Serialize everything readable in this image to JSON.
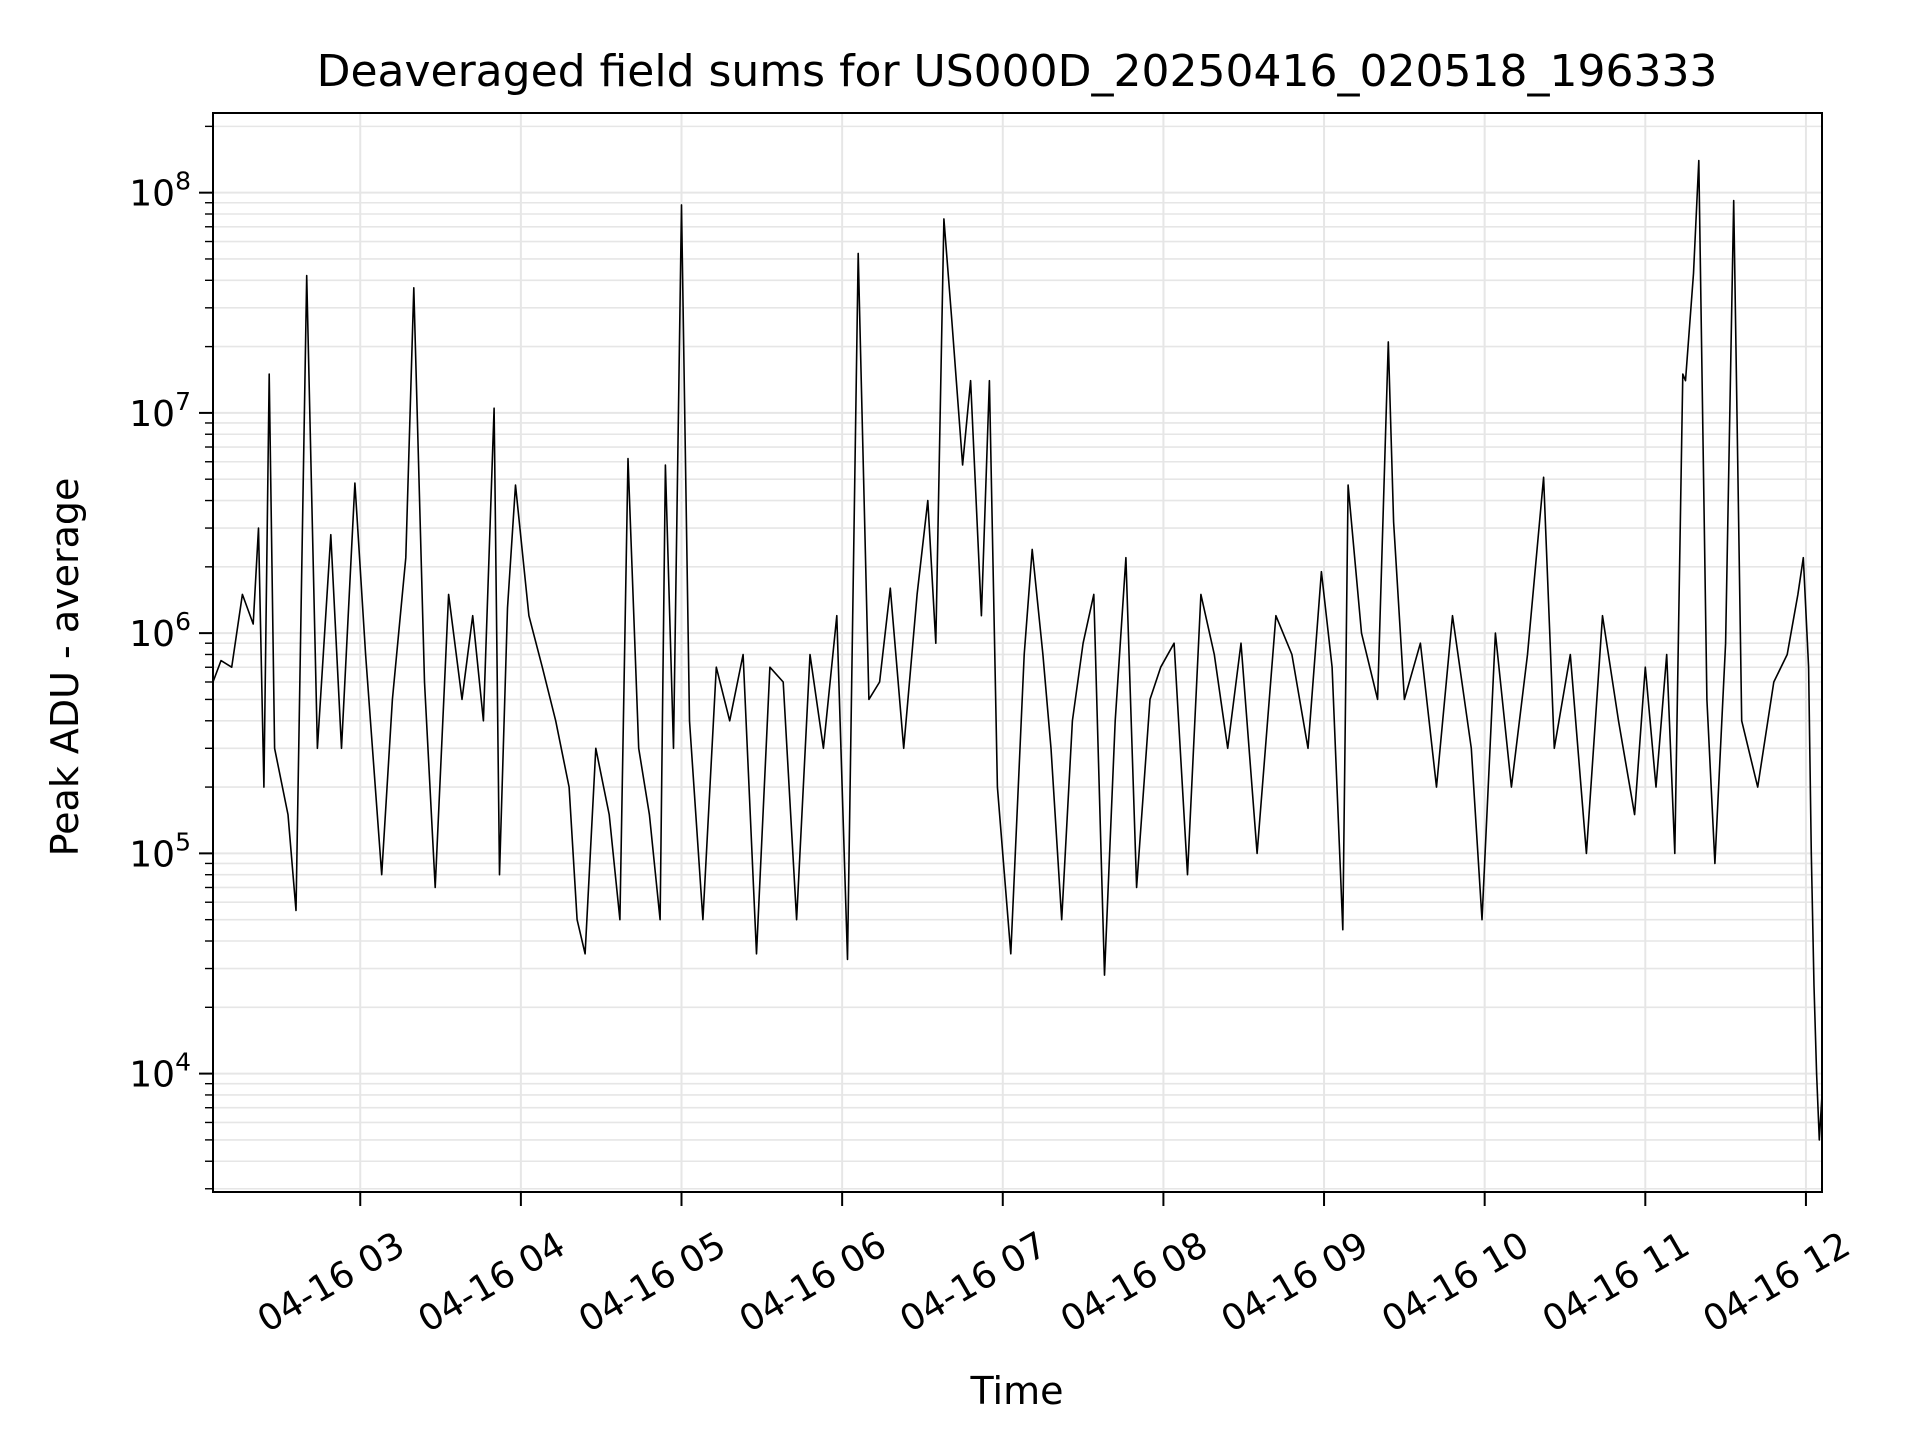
{
  "chart_data": {
    "type": "line",
    "title": "Deaveraged field sums for US000D_20250416_020518_196333",
    "xlabel": "Time",
    "ylabel": "Peak ADU - average",
    "yscale": "log",
    "ylim": [
      2900,
      230000000
    ],
    "xlim": [
      "04-16 02:05",
      "04-16 12:06"
    ],
    "grid": true,
    "line_color": "#000000",
    "grid_color": "#e6e6e6",
    "x_ticks": [
      {
        "x": "04-16 03:00",
        "label": "04-16 03"
      },
      {
        "x": "04-16 04:00",
        "label": "04-16 04"
      },
      {
        "x": "04-16 05:00",
        "label": "04-16 05"
      },
      {
        "x": "04-16 06:00",
        "label": "04-16 06"
      },
      {
        "x": "04-16 07:00",
        "label": "04-16 07"
      },
      {
        "x": "04-16 08:00",
        "label": "04-16 08"
      },
      {
        "x": "04-16 09:00",
        "label": "04-16 09"
      },
      {
        "x": "04-16 10:00",
        "label": "04-16 10"
      },
      {
        "x": "04-16 11:00",
        "label": "04-16 11"
      },
      {
        "x": "04-16 12:00",
        "label": "04-16 12"
      }
    ],
    "y_ticks": [
      {
        "value": 10000,
        "base": "10",
        "exp": "4"
      },
      {
        "value": 100000,
        "base": "10",
        "exp": "5"
      },
      {
        "value": 1000000,
        "base": "10",
        "exp": "6"
      },
      {
        "value": 10000000,
        "base": "10",
        "exp": "7"
      },
      {
        "value": 100000000,
        "base": "10",
        "exp": "8"
      }
    ],
    "series": [
      {
        "points": [
          [
            "04-16 02:05",
            600000
          ],
          [
            "04-16 02:08",
            750000
          ],
          [
            "04-16 02:12",
            700000
          ],
          [
            "04-16 02:16",
            1500000
          ],
          [
            "04-16 02:20",
            1100000
          ],
          [
            "04-16 02:22",
            3000000
          ],
          [
            "04-16 02:24",
            200000
          ],
          [
            "04-16 02:26",
            15000000
          ],
          [
            "04-16 02:28",
            300000
          ],
          [
            "04-16 02:33",
            150000
          ],
          [
            "04-16 02:36",
            55000
          ],
          [
            "04-16 02:40",
            42000000
          ],
          [
            "04-16 02:44",
            300000
          ],
          [
            "04-16 02:49",
            2800000
          ],
          [
            "04-16 02:53",
            300000
          ],
          [
            "04-16 02:58",
            4800000
          ],
          [
            "04-16 03:02",
            800000
          ],
          [
            "04-16 03:08",
            80000
          ],
          [
            "04-16 03:12",
            500000
          ],
          [
            "04-16 03:17",
            2200000
          ],
          [
            "04-16 03:20",
            37000000
          ],
          [
            "04-16 03:24",
            600000
          ],
          [
            "04-16 03:28",
            70000
          ],
          [
            "04-16 03:33",
            1500000
          ],
          [
            "04-16 03:38",
            500000
          ],
          [
            "04-16 03:42",
            1200000
          ],
          [
            "04-16 03:46",
            400000
          ],
          [
            "04-16 03:50",
            10500000
          ],
          [
            "04-16 03:52",
            80000
          ],
          [
            "04-16 03:55",
            1300000
          ],
          [
            "04-16 03:58",
            4700000
          ],
          [
            "04-16 04:03",
            1200000
          ],
          [
            "04-16 04:08",
            700000
          ],
          [
            "04-16 04:13",
            400000
          ],
          [
            "04-16 04:18",
            200000
          ],
          [
            "04-16 04:21",
            50000
          ],
          [
            "04-16 04:24",
            35000
          ],
          [
            "04-16 04:28",
            300000
          ],
          [
            "04-16 04:33",
            150000
          ],
          [
            "04-16 04:37",
            50000
          ],
          [
            "04-16 04:40",
            6200000
          ],
          [
            "04-16 04:44",
            300000
          ],
          [
            "04-16 04:48",
            150000
          ],
          [
            "04-16 04:52",
            50000
          ],
          [
            "04-16 04:54",
            5800000
          ],
          [
            "04-16 04:57",
            300000
          ],
          [
            "04-16 05:00",
            88000000
          ],
          [
            "04-16 05:03",
            400000
          ],
          [
            "04-16 05:08",
            50000
          ],
          [
            "04-16 05:13",
            700000
          ],
          [
            "04-16 05:18",
            400000
          ],
          [
            "04-16 05:23",
            800000
          ],
          [
            "04-16 05:28",
            35000
          ],
          [
            "04-16 05:33",
            700000
          ],
          [
            "04-16 05:38",
            600000
          ],
          [
            "04-16 05:43",
            50000
          ],
          [
            "04-16 05:48",
            800000
          ],
          [
            "04-16 05:53",
            300000
          ],
          [
            "04-16 05:58",
            1200000
          ],
          [
            "04-16 06:02",
            33000
          ],
          [
            "04-16 06:06",
            53000000
          ],
          [
            "04-16 06:10",
            500000
          ],
          [
            "04-16 06:14",
            600000
          ],
          [
            "04-16 06:18",
            1600000
          ],
          [
            "04-16 06:23",
            300000
          ],
          [
            "04-16 06:28",
            1500000
          ],
          [
            "04-16 06:32",
            4000000
          ],
          [
            "04-16 06:35",
            900000
          ],
          [
            "04-16 06:38",
            76000000
          ],
          [
            "04-16 06:41",
            26000000
          ],
          [
            "04-16 06:45",
            5800000
          ],
          [
            "04-16 06:48",
            14000000
          ],
          [
            "04-16 06:52",
            1200000
          ],
          [
            "04-16 06:55",
            14000000
          ],
          [
            "04-16 06:58",
            200000
          ],
          [
            "04-16 07:03",
            35000
          ],
          [
            "04-16 07:08",
            800000
          ],
          [
            "04-16 07:11",
            2400000
          ],
          [
            "04-16 07:15",
            800000
          ],
          [
            "04-16 07:18",
            300000
          ],
          [
            "04-16 07:22",
            50000
          ],
          [
            "04-16 07:26",
            400000
          ],
          [
            "04-16 07:30",
            900000
          ],
          [
            "04-16 07:34",
            1500000
          ],
          [
            "04-16 07:38",
            28000
          ],
          [
            "04-16 07:42",
            400000
          ],
          [
            "04-16 07:46",
            2200000
          ],
          [
            "04-16 07:50",
            70000
          ],
          [
            "04-16 07:55",
            500000
          ],
          [
            "04-16 07:59",
            700000
          ],
          [
            "04-16 08:04",
            900000
          ],
          [
            "04-16 08:09",
            80000
          ],
          [
            "04-16 08:14",
            1500000
          ],
          [
            "04-16 08:19",
            800000
          ],
          [
            "04-16 08:24",
            300000
          ],
          [
            "04-16 08:29",
            900000
          ],
          [
            "04-16 08:35",
            100000
          ],
          [
            "04-16 08:42",
            1200000
          ],
          [
            "04-16 08:48",
            800000
          ],
          [
            "04-16 08:54",
            300000
          ],
          [
            "04-16 08:59",
            1900000
          ],
          [
            "04-16 09:03",
            700000
          ],
          [
            "04-16 09:07",
            45000
          ],
          [
            "04-16 09:09",
            4700000
          ],
          [
            "04-16 09:14",
            1000000
          ],
          [
            "04-16 09:20",
            500000
          ],
          [
            "04-16 09:24",
            21000000
          ],
          [
            "04-16 09:26",
            3200000
          ],
          [
            "04-16 09:30",
            500000
          ],
          [
            "04-16 09:36",
            900000
          ],
          [
            "04-16 09:42",
            200000
          ],
          [
            "04-16 09:48",
            1200000
          ],
          [
            "04-16 09:55",
            300000
          ],
          [
            "04-16 09:59",
            50000
          ],
          [
            "04-16 10:04",
            1000000
          ],
          [
            "04-16 10:10",
            200000
          ],
          [
            "04-16 10:16",
            800000
          ],
          [
            "04-16 10:22",
            5100000
          ],
          [
            "04-16 10:26",
            300000
          ],
          [
            "04-16 10:32",
            800000
          ],
          [
            "04-16 10:38",
            100000
          ],
          [
            "04-16 10:44",
            1200000
          ],
          [
            "04-16 10:50",
            400000
          ],
          [
            "04-16 10:56",
            150000
          ],
          [
            "04-16 11:00",
            700000
          ],
          [
            "04-16 11:04",
            200000
          ],
          [
            "04-16 11:08",
            800000
          ],
          [
            "04-16 11:11",
            100000
          ],
          [
            "04-16 11:14",
            15000000
          ],
          [
            "04-16 11:15",
            14000000
          ],
          [
            "04-16 11:18",
            43000000
          ],
          [
            "04-16 11:20",
            140000000
          ],
          [
            "04-16 11:23",
            500000
          ],
          [
            "04-16 11:26",
            90000
          ],
          [
            "04-16 11:30",
            900000
          ],
          [
            "04-16 11:33",
            92000000
          ],
          [
            "04-16 11:36",
            400000
          ],
          [
            "04-16 11:42",
            200000
          ],
          [
            "04-16 11:48",
            600000
          ],
          [
            "04-16 11:53",
            800000
          ],
          [
            "04-16 11:57",
            1500000
          ],
          [
            "04-16 11:59",
            2200000
          ],
          [
            "04-16 12:01",
            700000
          ],
          [
            "04-16 12:02",
            100000
          ],
          [
            "04-16 12:03",
            25000
          ],
          [
            "04-16 12:04",
            10000
          ],
          [
            "04-16 12:05",
            5000
          ],
          [
            "04-16 12:06",
            8000
          ]
        ]
      }
    ]
  }
}
